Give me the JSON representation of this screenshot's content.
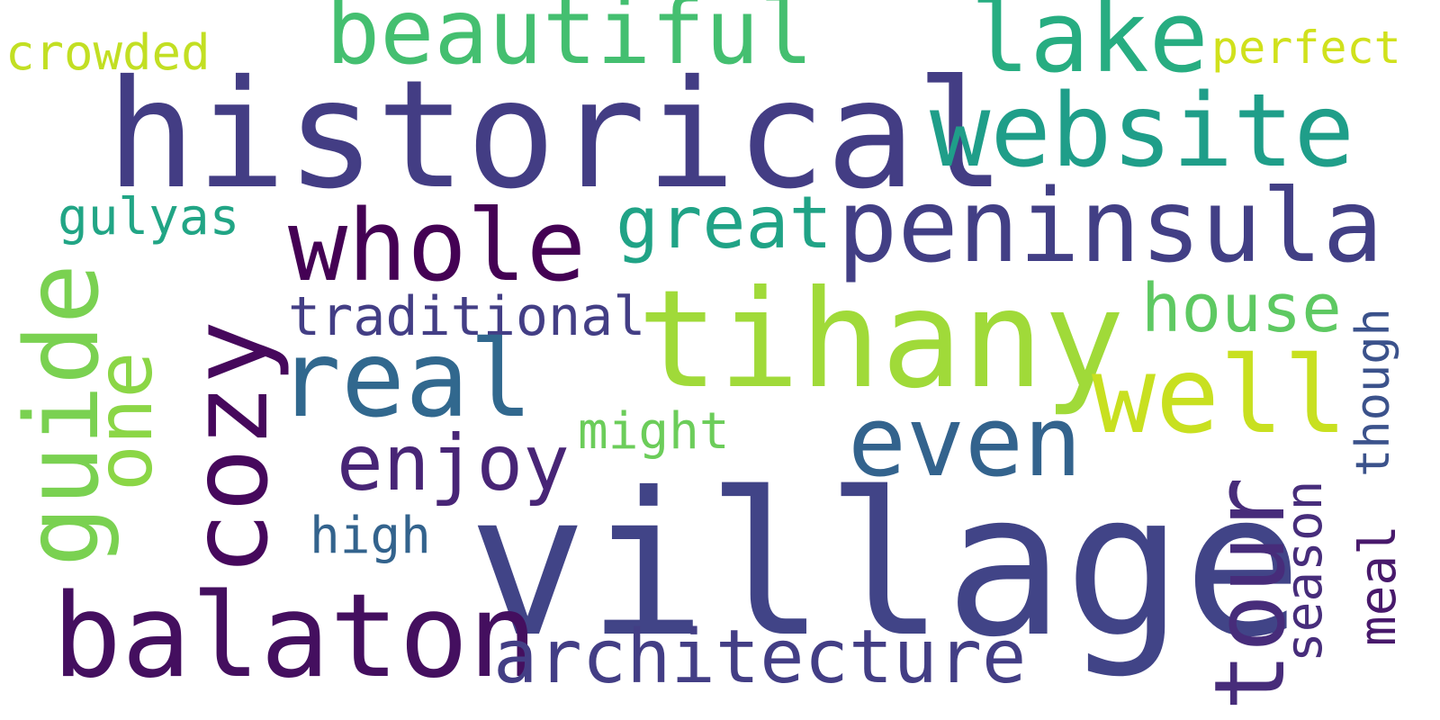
{
  "words": {
    "village": {
      "text": "village",
      "color": "#414487"
    },
    "historical": {
      "text": "historical",
      "color": "#433d84"
    },
    "tihany": {
      "text": "tihany",
      "color": "#a0da39"
    },
    "balaton": {
      "text": "balaton",
      "color": "#440f5f"
    },
    "cozy": {
      "text": "cozy",
      "color": "#46085c"
    },
    "peninsula": {
      "text": "peninsula",
      "color": "#423f85"
    },
    "website": {
      "text": "website",
      "color": "#1f9e89"
    },
    "lake": {
      "text": "lake",
      "color": "#27ad81"
    },
    "whole": {
      "text": "whole",
      "color": "#440154"
    },
    "beautiful": {
      "text": "beautiful",
      "color": "#44bf70"
    },
    "real": {
      "text": "real",
      "color": "#31688e"
    },
    "well": {
      "text": "well",
      "color": "#c8e020"
    },
    "even": {
      "text": "even",
      "color": "#33638d"
    },
    "tour": {
      "text": "tour",
      "color": "#472c7a"
    },
    "guide": {
      "text": "guide",
      "color": "#7ad151"
    },
    "architecture": {
      "text": "architecture",
      "color": "#433e85"
    },
    "enjoy": {
      "text": "enjoy",
      "color": "#482576"
    },
    "one": {
      "text": "one",
      "color": "#8bd646"
    },
    "great": {
      "text": "great",
      "color": "#20a386"
    },
    "house": {
      "text": "house",
      "color": "#5ec962"
    },
    "traditional": {
      "text": "traditional",
      "color": "#433e85"
    },
    "season": {
      "text": "season",
      "color": "#472d7b"
    },
    "meal": {
      "text": "meal",
      "color": "#48196b"
    },
    "though": {
      "text": "though",
      "color": "#3b528b"
    },
    "might": {
      "text": "might",
      "color": "#6ccd5a"
    },
    "gulyas": {
      "text": "gulyas",
      "color": "#21a585"
    },
    "high": {
      "text": "high",
      "color": "#33638d"
    },
    "crowded": {
      "text": "crowded",
      "color": "#c2df23"
    },
    "perfect": {
      "text": "perfect",
      "color": "#d0e11c"
    }
  }
}
